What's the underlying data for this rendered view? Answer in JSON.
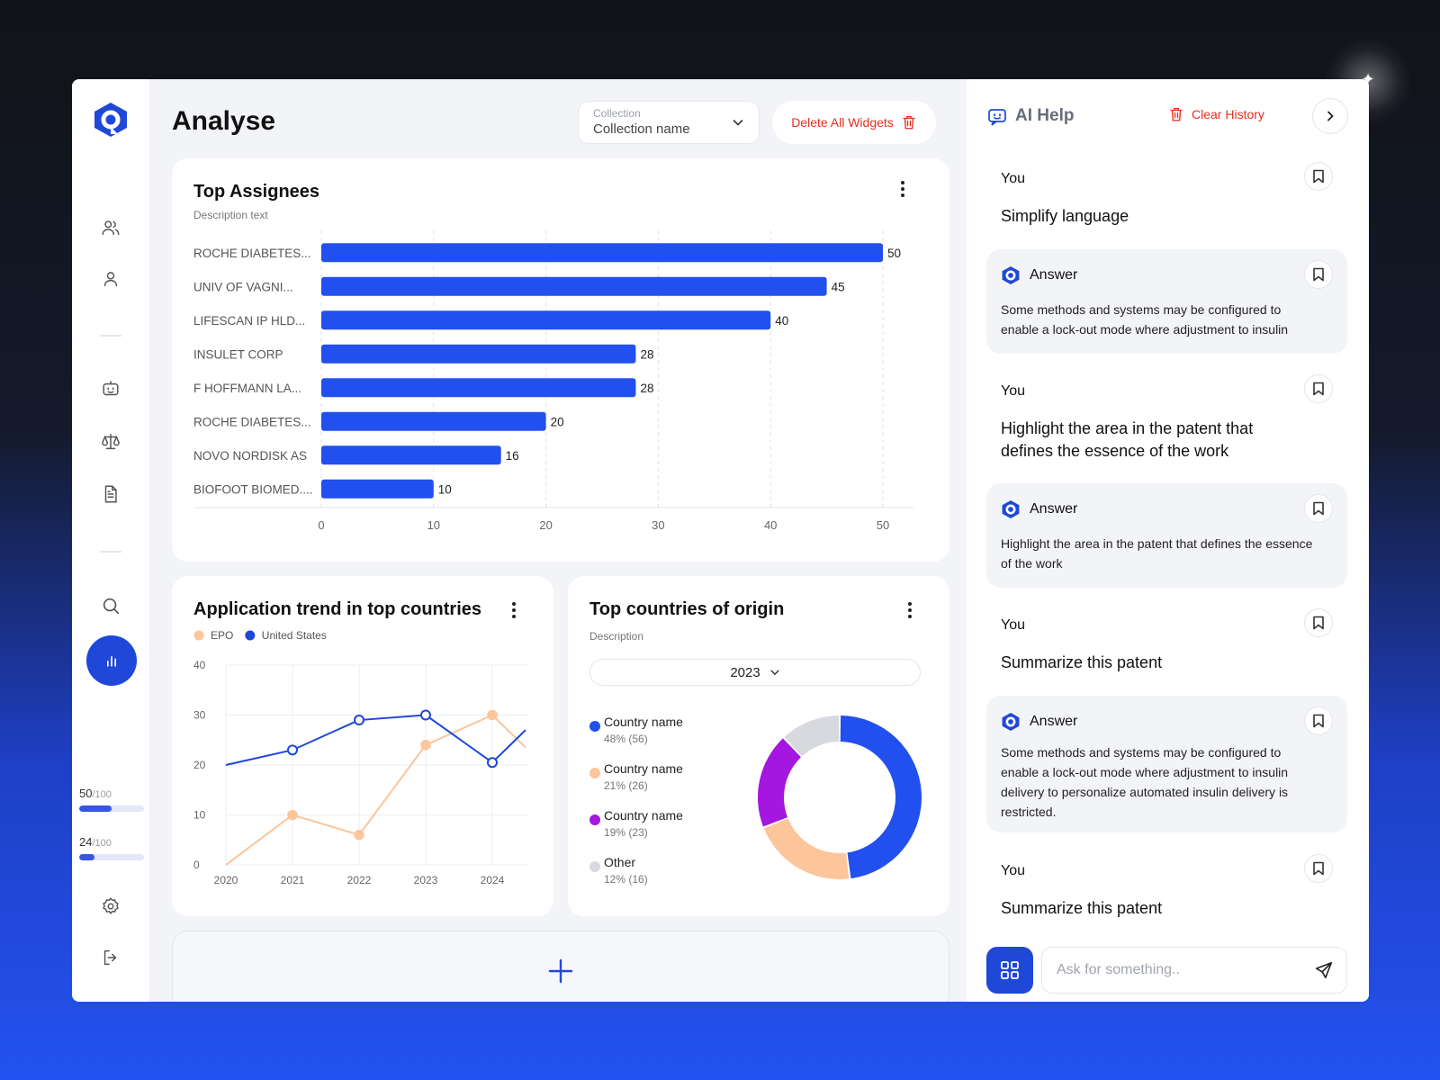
{
  "page": {
    "title": "Analyse"
  },
  "collection": {
    "label": "Collection",
    "value": "Collection name"
  },
  "toolbar": {
    "delete_all_label": "Delete All Widgets"
  },
  "sidebar": {
    "items": [
      {
        "name": "users",
        "icon": "users-icon"
      },
      {
        "name": "profile",
        "icon": "user-icon"
      },
      {
        "name": "ai-bot",
        "icon": "bot-icon"
      },
      {
        "name": "legal",
        "icon": "scale-icon"
      },
      {
        "name": "documents",
        "icon": "document-icon"
      },
      {
        "name": "search",
        "icon": "search-icon"
      },
      {
        "name": "analyse",
        "icon": "bar-chart-icon",
        "active": true
      },
      {
        "name": "settings",
        "icon": "gear-icon"
      },
      {
        "name": "logout",
        "icon": "logout-icon"
      }
    ],
    "quotas": [
      {
        "used": "50",
        "total": "/100",
        "fraction": 0.5
      },
      {
        "used": "24",
        "total": "/100",
        "fraction": 0.24
      }
    ]
  },
  "widgets": {
    "assignees": {
      "title": "Top Assignees",
      "description": "Description text"
    },
    "trend": {
      "title": "Application trend in top countries"
    },
    "origin": {
      "title": "Top countries of origin",
      "description": "Description",
      "year": "2023",
      "legend": [
        {
          "name": "Country name",
          "value": "48% (56)",
          "color": "#2250ee"
        },
        {
          "name": "Country name",
          "value": "21% (26)",
          "color": "#fcc59a"
        },
        {
          "name": "Country name",
          "value": "19% (23)",
          "color": "#a516e0"
        },
        {
          "name": "Other",
          "value": "12% (16)",
          "color": "#d7d9de"
        }
      ]
    }
  },
  "chart_data": [
    {
      "type": "bar",
      "orientation": "horizontal",
      "title": "Top Assignees",
      "categories": [
        "ROCHE DIABETES...",
        "UNIV OF VAGNI...",
        "LIFESCAN IP HLD...",
        "INSULET CORP",
        "F HOFFMANN LA...",
        "ROCHE DIABETES...",
        "NOVO NORDISK AS",
        "BIOFOOT BIOMED...."
      ],
      "values": [
        50,
        45,
        40,
        28,
        28,
        20,
        16,
        10
      ],
      "xlim": [
        0,
        50
      ],
      "xticks": [
        0,
        10,
        20,
        30,
        40,
        50
      ],
      "color": "#2250ee",
      "grid": "vertical dashed"
    },
    {
      "type": "line",
      "title": "Application trend in top countries",
      "x": [
        "2020",
        "2021",
        "2022",
        "2023",
        "2024"
      ],
      "ylim": [
        0,
        40
      ],
      "yticks": [
        0,
        10,
        20,
        30,
        40
      ],
      "legend": "top-left",
      "series": [
        {
          "name": "EPO",
          "color": "#fcc59a",
          "values": [
            0,
            10,
            6,
            24,
            30
          ],
          "x_end": 2024.5,
          "y_end": 23.5
        },
        {
          "name": "United States",
          "color": "#1f48d8",
          "values": [
            20,
            23,
            29,
            30,
            20.5
          ],
          "x_end": 2024.5,
          "y_end": 27
        }
      ]
    },
    {
      "type": "pie",
      "variant": "donut",
      "title": "Top countries of origin",
      "labels": [
        "Country name",
        "Country name",
        "Country name",
        "Other"
      ],
      "values": [
        48,
        21,
        19,
        12
      ],
      "counts": [
        56,
        26,
        23,
        16
      ],
      "colors": [
        "#2250ee",
        "#fcc59a",
        "#a516e0",
        "#d7d9de"
      ]
    }
  ],
  "ai_help": {
    "title": "AI Help",
    "clear_label": "Clear History",
    "messages": [
      {
        "role": "user",
        "who": "You",
        "text": "Simplify language"
      },
      {
        "role": "answer",
        "who": "Answer",
        "text": "Some methods and systems may be configured to enable a lock-out mode where adjustment to insulin"
      },
      {
        "role": "user",
        "who": "You",
        "text": "Highlight the area in the patent that defines the essence of the work"
      },
      {
        "role": "answer",
        "who": "Answer",
        "text": "Highlight the area in the patent that defines the essence of the work"
      },
      {
        "role": "user",
        "who": "You",
        "text": "Summarize this patent"
      },
      {
        "role": "answer",
        "who": "Answer",
        "text": "Some methods and systems may be configured to enable a lock-out mode where adjustment to insulin delivery to personalize automated insulin delivery is restricted."
      },
      {
        "role": "user",
        "who": "You",
        "text": "Summarize this patent"
      }
    ],
    "input_placeholder": "Ask for something..",
    "input_value": ""
  },
  "colors": {
    "accent": "#1f48d8",
    "danger": "#e0301e",
    "bar": "#2250ee"
  }
}
